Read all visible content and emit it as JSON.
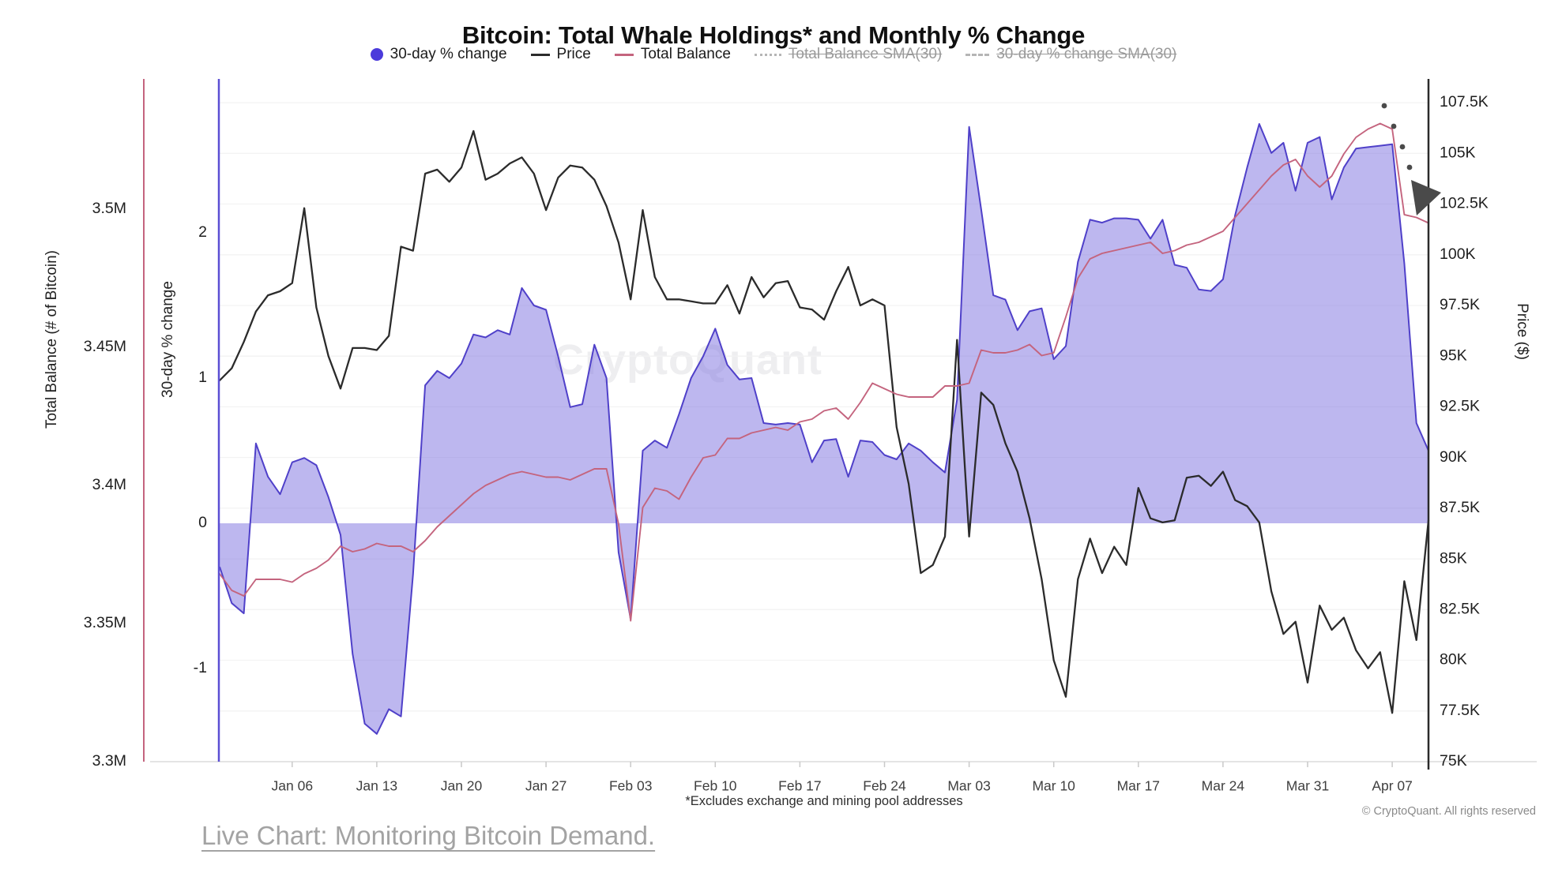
{
  "title": "Bitcoin: Total Whale Holdings* and Monthly % Change",
  "legend": [
    {
      "label": "30-day % change",
      "marker": "dot",
      "color": "#4b3bdb",
      "disabled": false
    },
    {
      "label": "Price",
      "marker": "line",
      "color": "#2b2b2b",
      "disabled": false
    },
    {
      "label": "Total Balance",
      "marker": "line",
      "color": "#c4647e",
      "disabled": false
    },
    {
      "label": "Total Balance SMA(30)",
      "marker": "dotted-line",
      "color": "#b5b5b5",
      "disabled": true
    },
    {
      "label": "30-day % change SMA(30)",
      "marker": "dashed-line",
      "color": "#b5b5b5",
      "disabled": true
    }
  ],
  "watermark": "CryptoQuant",
  "footnote": "*Excludes exchange and mining pool addresses",
  "copyright": "© CryptoQuant. All rights reserved",
  "link": {
    "text": "Live Chart: Monitoring Bitcoin Demand."
  },
  "annotation_arrow": {
    "color": "#4a4a4a",
    "direction": "down-right",
    "points_at": "price axis near 102.5K"
  },
  "chart_data": {
    "type": "mixed",
    "title": "Bitcoin: Total Whale Holdings* and Monthly % Change",
    "grid": true,
    "legend_position": "top",
    "x": {
      "unit": "day",
      "tick_labels": [
        "Jan 06",
        "Jan 13",
        "Jan 20",
        "Jan 27",
        "Feb 03",
        "Feb 10",
        "Feb 17",
        "Feb 24",
        "Mar 03",
        "Mar 10",
        "Mar 17",
        "Mar 24",
        "Mar 31",
        "Apr 07"
      ],
      "tick_indices": [
        6,
        13,
        20,
        27,
        34,
        41,
        48,
        55,
        62,
        69,
        76,
        83,
        90,
        97
      ],
      "dates": [
        "Dec 31",
        "Jan 1",
        "Jan 2",
        "Jan 3",
        "Jan 4",
        "Jan 5",
        "Jan 6",
        "Jan 7",
        "Jan 8",
        "Jan 9",
        "Jan 10",
        "Jan 11",
        "Jan 12",
        "Jan 13",
        "Jan 14",
        "Jan 15",
        "Jan 16",
        "Jan 17",
        "Jan 18",
        "Jan 19",
        "Jan 20",
        "Jan 21",
        "Jan 22",
        "Jan 23",
        "Jan 24",
        "Jan 25",
        "Jan 26",
        "Jan 27",
        "Jan 28",
        "Jan 29",
        "Jan 30",
        "Jan 31",
        "Feb 1",
        "Feb 2",
        "Feb 3",
        "Feb 4",
        "Feb 5",
        "Feb 6",
        "Feb 7",
        "Feb 8",
        "Feb 9",
        "Feb 10",
        "Feb 11",
        "Feb 12",
        "Feb 13",
        "Feb 14",
        "Feb 15",
        "Feb 16",
        "Feb 17",
        "Feb 18",
        "Feb 19",
        "Feb 20",
        "Feb 21",
        "Feb 22",
        "Feb 23",
        "Feb 24",
        "Feb 25",
        "Feb 26",
        "Feb 27",
        "Feb 28",
        "Mar 1",
        "Mar 2",
        "Mar 3",
        "Mar 4",
        "Mar 5",
        "Mar 6",
        "Mar 7",
        "Mar 8",
        "Mar 9",
        "Mar 10",
        "Mar 11",
        "Mar 12",
        "Mar 13",
        "Mar 14",
        "Mar 15",
        "Mar 16",
        "Mar 17",
        "Mar 18",
        "Mar 19",
        "Mar 20",
        "Mar 21",
        "Mar 22",
        "Mar 23",
        "Mar 24",
        "Mar 25",
        "Mar 26",
        "Mar 27",
        "Mar 28",
        "Mar 29",
        "Mar 30",
        "Mar 31",
        "Apr 1",
        "Apr 2",
        "Apr 3",
        "Apr 4",
        "Apr 5",
        "Apr 6",
        "Apr 7",
        "Apr 8",
        "Apr 9",
        "Apr 10"
      ]
    },
    "axes": {
      "balance": {
        "title": "Total Balance (# of Bitcoin)",
        "side": "outer-left",
        "color": "#c4647e",
        "tick_labels": [
          "3.5M",
          "3.45M",
          "3.4M",
          "3.35M",
          "3.3M"
        ],
        "tick_values": [
          3.5,
          3.45,
          3.4,
          3.35,
          3.3
        ],
        "range": [
          3.3,
          3.547
        ]
      },
      "percent": {
        "title": "30-day % change",
        "side": "inner-left",
        "color": "#5b4fd4",
        "tick_labels": [
          "2",
          "1",
          "0",
          "-1"
        ],
        "tick_values": [
          2,
          1,
          0,
          -1
        ],
        "range": [
          -1.64,
          3.06
        ]
      },
      "price": {
        "title": "Price ($)",
        "side": "right",
        "color": "#2a2a2a",
        "tick_labels": [
          "107.5K",
          "105K",
          "102.5K",
          "100K",
          "97.5K",
          "95K",
          "92.5K",
          "90K",
          "87.5K",
          "85K",
          "82.5K",
          "80K",
          "77.5K",
          "75K"
        ],
        "tick_values": [
          107.5,
          105,
          102.5,
          100,
          97.5,
          95,
          92.5,
          90,
          87.5,
          85,
          82.5,
          80,
          77.5,
          75
        ],
        "range": [
          75,
          108.4
        ]
      }
    },
    "series": [
      {
        "name": "30-day % change",
        "type": "area",
        "axis": "percent",
        "line_color": "#4f40c9",
        "fill_color": "#7c70e0",
        "fill_opacity": 0.5,
        "values": [
          -0.3,
          -0.55,
          -0.62,
          0.55,
          0.32,
          0.2,
          0.42,
          0.45,
          0.4,
          0.18,
          -0.08,
          -0.9,
          -1.38,
          -1.45,
          -1.28,
          -1.33,
          -0.35,
          0.95,
          1.05,
          1.0,
          1.1,
          1.3,
          1.28,
          1.33,
          1.3,
          1.62,
          1.5,
          1.47,
          1.15,
          0.8,
          0.82,
          1.23,
          1.0,
          -0.2,
          -0.66,
          0.5,
          0.57,
          0.52,
          0.75,
          1.0,
          1.15,
          1.34,
          1.09,
          0.99,
          1.0,
          0.69,
          0.68,
          0.69,
          0.68,
          0.42,
          0.57,
          0.58,
          0.32,
          0.57,
          0.56,
          0.47,
          0.44,
          0.55,
          0.5,
          0.42,
          0.35,
          0.85,
          2.73,
          2.16,
          1.57,
          1.54,
          1.33,
          1.46,
          1.48,
          1.13,
          1.22,
          1.8,
          2.09,
          2.07,
          2.1,
          2.1,
          2.09,
          1.96,
          2.09,
          1.78,
          1.76,
          1.61,
          1.6,
          1.68,
          2.12,
          2.45,
          2.75,
          2.55,
          2.62,
          2.29,
          2.62,
          2.66,
          2.23,
          2.45,
          2.58,
          2.59,
          2.6,
          2.61,
          1.79,
          0.69,
          0.5
        ]
      },
      {
        "name": "Price",
        "type": "line",
        "axis": "price",
        "line_color": "#2b2b2b",
        "values": [
          93.8,
          94.4,
          95.7,
          97.2,
          98.0,
          98.2,
          98.6,
          102.3,
          97.4,
          95.0,
          93.4,
          95.4,
          95.4,
          95.3,
          96.0,
          100.4,
          100.2,
          104.0,
          104.2,
          103.6,
          104.3,
          106.1,
          103.7,
          104.0,
          104.5,
          104.8,
          104.0,
          102.2,
          103.8,
          104.4,
          104.3,
          103.7,
          102.4,
          100.6,
          97.8,
          102.2,
          98.9,
          97.8,
          97.8,
          97.7,
          97.6,
          97.6,
          98.5,
          97.1,
          98.9,
          97.9,
          98.6,
          98.7,
          97.4,
          97.3,
          96.8,
          98.2,
          99.4,
          97.5,
          97.8,
          97.5,
          91.5,
          88.7,
          84.3,
          84.7,
          86.1,
          95.8,
          86.1,
          93.2,
          92.6,
          90.7,
          89.3,
          87.0,
          84.0,
          80.0,
          78.2,
          84.0,
          86.0,
          84.3,
          85.6,
          84.7,
          88.5,
          87.0,
          86.8,
          86.9,
          89.0,
          89.1,
          88.6,
          89.3,
          87.9,
          87.6,
          86.8,
          83.4,
          81.3,
          81.9,
          78.9,
          82.7,
          81.5,
          82.1,
          80.5,
          79.6,
          80.4,
          77.4,
          83.9,
          81.0,
          86.9
        ]
      },
      {
        "name": "Total Balance",
        "type": "line",
        "axis": "balance",
        "line_color": "#c4647e",
        "values": [
          3.368,
          3.362,
          3.36,
          3.366,
          3.366,
          3.366,
          3.365,
          3.368,
          3.37,
          3.373,
          3.378,
          3.376,
          3.377,
          3.379,
          3.378,
          3.378,
          3.376,
          3.38,
          3.385,
          3.389,
          3.393,
          3.397,
          3.4,
          3.402,
          3.404,
          3.405,
          3.404,
          3.403,
          3.403,
          3.402,
          3.404,
          3.406,
          3.406,
          3.386,
          3.351,
          3.392,
          3.399,
          3.398,
          3.395,
          3.403,
          3.41,
          3.411,
          3.417,
          3.417,
          3.419,
          3.42,
          3.421,
          3.42,
          3.423,
          3.424,
          3.427,
          3.428,
          3.424,
          3.43,
          3.437,
          3.435,
          3.433,
          3.432,
          3.432,
          3.432,
          3.436,
          3.436,
          3.437,
          3.449,
          3.448,
          3.448,
          3.449,
          3.451,
          3.447,
          3.448,
          3.461,
          3.475,
          3.482,
          3.484,
          3.485,
          3.486,
          3.487,
          3.488,
          3.484,
          3.485,
          3.487,
          3.488,
          3.49,
          3.492,
          3.497,
          3.502,
          3.507,
          3.512,
          3.516,
          3.518,
          3.512,
          3.508,
          3.512,
          3.52,
          3.526,
          3.529,
          3.531,
          3.529,
          3.498,
          3.497,
          3.495
        ]
      },
      {
        "name": "Total Balance SMA(30)",
        "type": "line",
        "axis": "balance",
        "hidden": true,
        "values": []
      },
      {
        "name": "30-day % change SMA(30)",
        "type": "line",
        "axis": "percent",
        "hidden": true,
        "values": []
      }
    ]
  }
}
